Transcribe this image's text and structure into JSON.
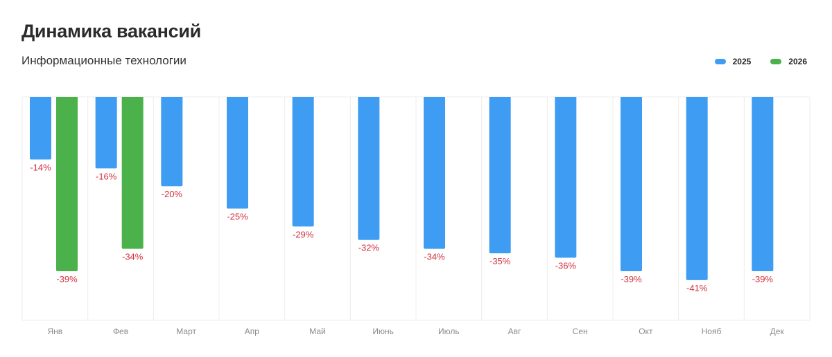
{
  "header": {
    "title": "Динамика вакансий",
    "subtitle": "Информационные технологии"
  },
  "colors": {
    "series_2025": "#3e9cf2",
    "series_2026": "#4bb24b",
    "label_negative": "#d32f3c",
    "tick_text": "#8a8a8a",
    "grid": "#ececec"
  },
  "chart_data": {
    "type": "bar",
    "orientation": "vertical-negative",
    "title": "Динамика вакансий",
    "subtitle": "Информационные технологии",
    "categories": [
      "Янв",
      "Фев",
      "Март",
      "Апр",
      "Май",
      "Июнь",
      "Июль",
      "Авг",
      "Сен",
      "Окт",
      "Нояб",
      "Дек"
    ],
    "series": [
      {
        "name": "2025",
        "values": [
          -14,
          -16,
          -20,
          -25,
          -29,
          -32,
          -34,
          -35,
          -36,
          -39,
          -41,
          -39
        ],
        "labels": [
          "-14%",
          "-16%",
          "-20%",
          "-25%",
          "-29%",
          "-32%",
          "-34%",
          "-35%",
          "-36%",
          "-39%",
          "-41%",
          "-39%"
        ]
      },
      {
        "name": "2026",
        "values": [
          -39,
          -34,
          null,
          null,
          null,
          null,
          null,
          null,
          null,
          null,
          null,
          null
        ],
        "labels": [
          "-39%",
          "-34%",
          null,
          null,
          null,
          null,
          null,
          null,
          null,
          null,
          null,
          null
        ]
      }
    ],
    "ylim": [
      -50,
      0
    ],
    "grid": true,
    "legend": "top-right"
  }
}
